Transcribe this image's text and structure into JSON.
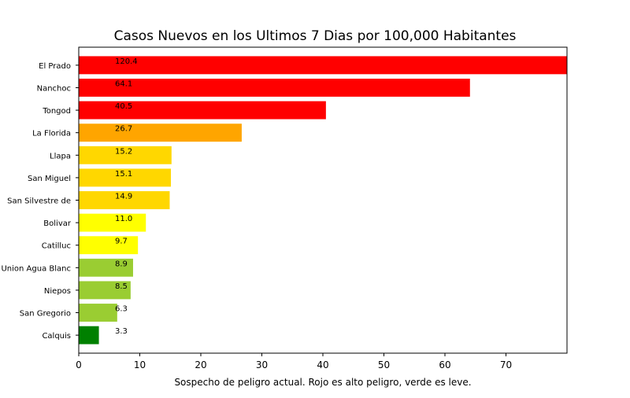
{
  "chart_data": {
    "type": "bar",
    "orientation": "horizontal",
    "title": "Casos Nuevos en los Ultimos 7 Dias por 100,000 Habitantes",
    "xlabel": "Sospecho de peligro actual. Rojo es alto peligro, verde es leve.",
    "ylabel": "",
    "xlim": [
      0,
      80
    ],
    "xticks": [
      0,
      10,
      20,
      30,
      40,
      50,
      60,
      70
    ],
    "grid": false,
    "categories": [
      "El Prado",
      "Nanchoc",
      "Tongod",
      "La Florida",
      "Llapa",
      "San Miguel",
      "San Silvestre de",
      "Bolivar",
      "Catilluc",
      "Union Agua Blanc",
      "Niepos",
      "San Gregorio",
      "Calquis"
    ],
    "values": [
      120.4,
      64.1,
      40.5,
      26.7,
      15.2,
      15.1,
      14.9,
      11.0,
      9.7,
      8.9,
      8.5,
      6.3,
      3.3
    ],
    "data_labels": [
      "120.4",
      "64.1",
      "40.5",
      "26.7",
      "15.2",
      "15.1",
      "14.9",
      "11.0",
      "9.7",
      "8.9",
      "8.5",
      "6.3",
      "3.3"
    ],
    "colors": [
      "#ff0000",
      "#ff0000",
      "#ff0000",
      "#ffa500",
      "#ffd700",
      "#ffd700",
      "#ffd700",
      "#ffff00",
      "#ffff00",
      "#9acd32",
      "#9acd32",
      "#9acd32",
      "#008000"
    ],
    "data_label_x": 6
  }
}
